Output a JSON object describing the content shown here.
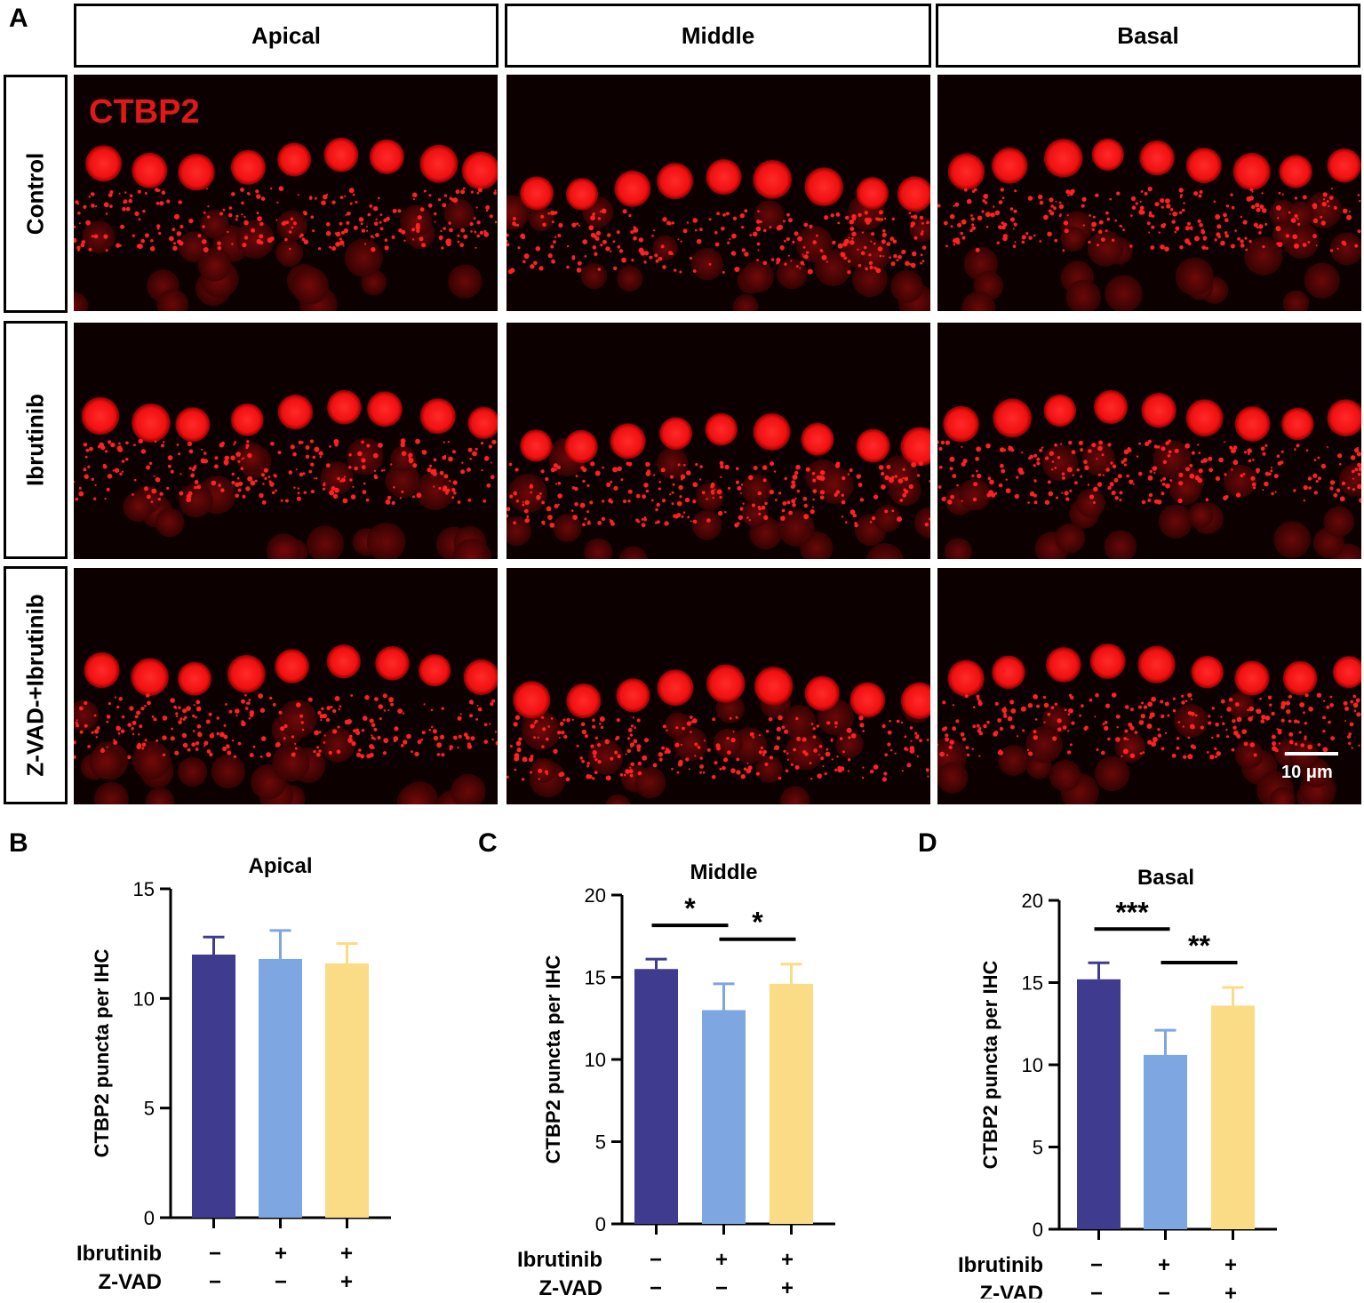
{
  "panel_letters": {
    "a": "A",
    "b": "B",
    "c": "C",
    "d": "D"
  },
  "columns": [
    "Apical",
    "Middle",
    "Basal"
  ],
  "rows": [
    "Control",
    "Ibrutinib",
    "Z-VAD-+Ibrutinib"
  ],
  "stain_label": "CTBP2",
  "scale_bar": "10 μm",
  "colors": {
    "control": "#3f3b8f",
    "ibrutinib": "#7ea6e0",
    "zvad": "#f9dc85",
    "stain": "#ff1a1a"
  },
  "treatment_rows": {
    "ibrutinib_label": "Ibrutinib",
    "zvad_label": "Z-VAD",
    "ibrutinib": [
      "−",
      "+",
      "+"
    ],
    "zvad": [
      "−",
      "−",
      "+"
    ]
  },
  "chart_data": [
    {
      "type": "bar",
      "title": "Apical",
      "ylabel": "CTBP2 puncta per IHC",
      "ylim": [
        0,
        15
      ],
      "yticks": [
        "0",
        "5",
        "10",
        "15"
      ],
      "values": [
        12.0,
        11.8,
        11.6
      ],
      "errors": [
        0.8,
        1.3,
        0.9
      ],
      "significance": []
    },
    {
      "type": "bar",
      "title": "Middle",
      "ylabel": "CTBP2 puncta per IHC",
      "ylim": [
        0,
        20
      ],
      "yticks": [
        "0",
        "5",
        "10",
        "15",
        "20"
      ],
      "values": [
        15.5,
        13.0,
        14.6
      ],
      "errors": [
        0.6,
        1.6,
        1.2
      ],
      "significance": [
        {
          "from": 0,
          "to": 1,
          "label": "*"
        },
        {
          "from": 1,
          "to": 2,
          "label": "*"
        }
      ]
    },
    {
      "type": "bar",
      "title": "Basal",
      "ylabel": "CTBP2 puncta per IHC",
      "ylim": [
        0,
        20
      ],
      "yticks": [
        "0",
        "5",
        "10",
        "15",
        "20"
      ],
      "values": [
        15.2,
        10.6,
        13.6
      ],
      "errors": [
        1.0,
        1.5,
        1.1
      ],
      "significance": [
        {
          "from": 0,
          "to": 1,
          "label": "***"
        },
        {
          "from": 1,
          "to": 2,
          "label": "**"
        }
      ]
    }
  ]
}
